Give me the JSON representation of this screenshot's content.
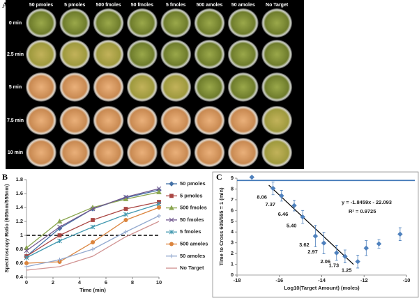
{
  "panel_a": {
    "label": "A",
    "columns": [
      "50 pmoles",
      "5 pmoles",
      "500 fmoles",
      "50 fmoles",
      "5 fmoles",
      "500 amoles",
      "50 amoles",
      "No Target"
    ],
    "rows": [
      "0 min",
      "2.5 min",
      "5 min",
      "7.5 min",
      "10 min"
    ]
  },
  "chart_data": [
    {
      "type": "line",
      "panel_label": "B",
      "y_label": "Spectroscopy Ratio (605nm/555nm)",
      "x_label": "Time (min)",
      "x": [
        0,
        2.5,
        5,
        7.5,
        10
      ],
      "xlim": [
        0,
        10
      ],
      "xticks": [
        0,
        2,
        4,
        6,
        8,
        10
      ],
      "ylim": [
        0.4,
        1.8
      ],
      "yticks": [
        0.4,
        0.6,
        0.8,
        1,
        1.2,
        1.4,
        1.6,
        1.8
      ],
      "reference_line": 1,
      "legend": "right",
      "series": [
        {
          "name": "50 pmoles",
          "color": "#4572a7",
          "marker": "diamond",
          "values": [
            0.7,
            1.1,
            1.38,
            1.54,
            1.65
          ]
        },
        {
          "name": "5 pmoles",
          "color": "#aa4643",
          "marker": "square",
          "values": [
            0.7,
            1.0,
            1.22,
            1.38,
            1.48
          ]
        },
        {
          "name": "500 fmoles",
          "color": "#89a54e",
          "marker": "triangle",
          "values": [
            0.82,
            1.2,
            1.4,
            1.52,
            1.62
          ]
        },
        {
          "name": "50 fmoles",
          "color": "#71588f",
          "marker": "x",
          "values": [
            0.78,
            1.12,
            1.38,
            1.55,
            1.67
          ]
        },
        {
          "name": "5 fmoles",
          "color": "#4198af",
          "marker": "star",
          "values": [
            0.68,
            0.92,
            1.12,
            1.3,
            1.45
          ]
        },
        {
          "name": "500 amoles",
          "color": "#db843d",
          "marker": "circle",
          "values": [
            0.6,
            0.62,
            0.9,
            1.22,
            1.4
          ]
        },
        {
          "name": "50 amoles",
          "color": "#93a9cf",
          "marker": "plus",
          "values": [
            0.55,
            0.65,
            0.8,
            1.05,
            1.28
          ]
        },
        {
          "name": "No Target",
          "color": "#d19392",
          "marker": "none",
          "values": [
            0.5,
            0.55,
            0.7,
            0.98,
            1.2
          ]
        }
      ]
    },
    {
      "type": "scatter",
      "panel_label": "C",
      "y_label": "Time to Cross 605/555 = 1 (min)",
      "x_label": "Log10(Target Amount) (moles)",
      "xlim": [
        -18,
        -10
      ],
      "xticks": [
        -18,
        -16,
        -14,
        -12,
        -10
      ],
      "ylim": [
        0,
        9
      ],
      "yticks": [
        0,
        1,
        2,
        3,
        4,
        5,
        6,
        7,
        8,
        9
      ],
      "reference_line": 8.8,
      "reference_color": "#4a7ebb",
      "trendline": {
        "x": [
          -16.5,
          -12.5
        ],
        "y": [
          8.36,
          0.98
        ],
        "color": "#000000"
      },
      "equation": "y = -1.8459x - 22.093",
      "r_squared": "R² = 0.9725",
      "series": [
        {
          "color": "#4f81bd",
          "x": [
            -17.3,
            -16.3,
            -15.9,
            -15.3,
            -14.9,
            -14.3,
            -13.9,
            -13.3,
            -12.9,
            -12.3,
            -11.9,
            -11.3,
            -10.3
          ],
          "values": [
            9.1,
            8.06,
            7.37,
            6.46,
            5.4,
            3.62,
            2.97,
            2.06,
            1.73,
            1.25,
            2.5,
            2.9,
            3.8
          ],
          "value_labels": [
            null,
            "8.06",
            "7.37",
            "6.46",
            "5.40",
            "3.62",
            "2.97",
            "2.06",
            "1.73",
            "1.25",
            null,
            null,
            null
          ],
          "errors": [
            0,
            0.6,
            0.5,
            0.5,
            0.6,
            1.0,
            1.0,
            0.7,
            0.6,
            0.6,
            0.7,
            0.4,
            0.6
          ]
        }
      ]
    }
  ]
}
